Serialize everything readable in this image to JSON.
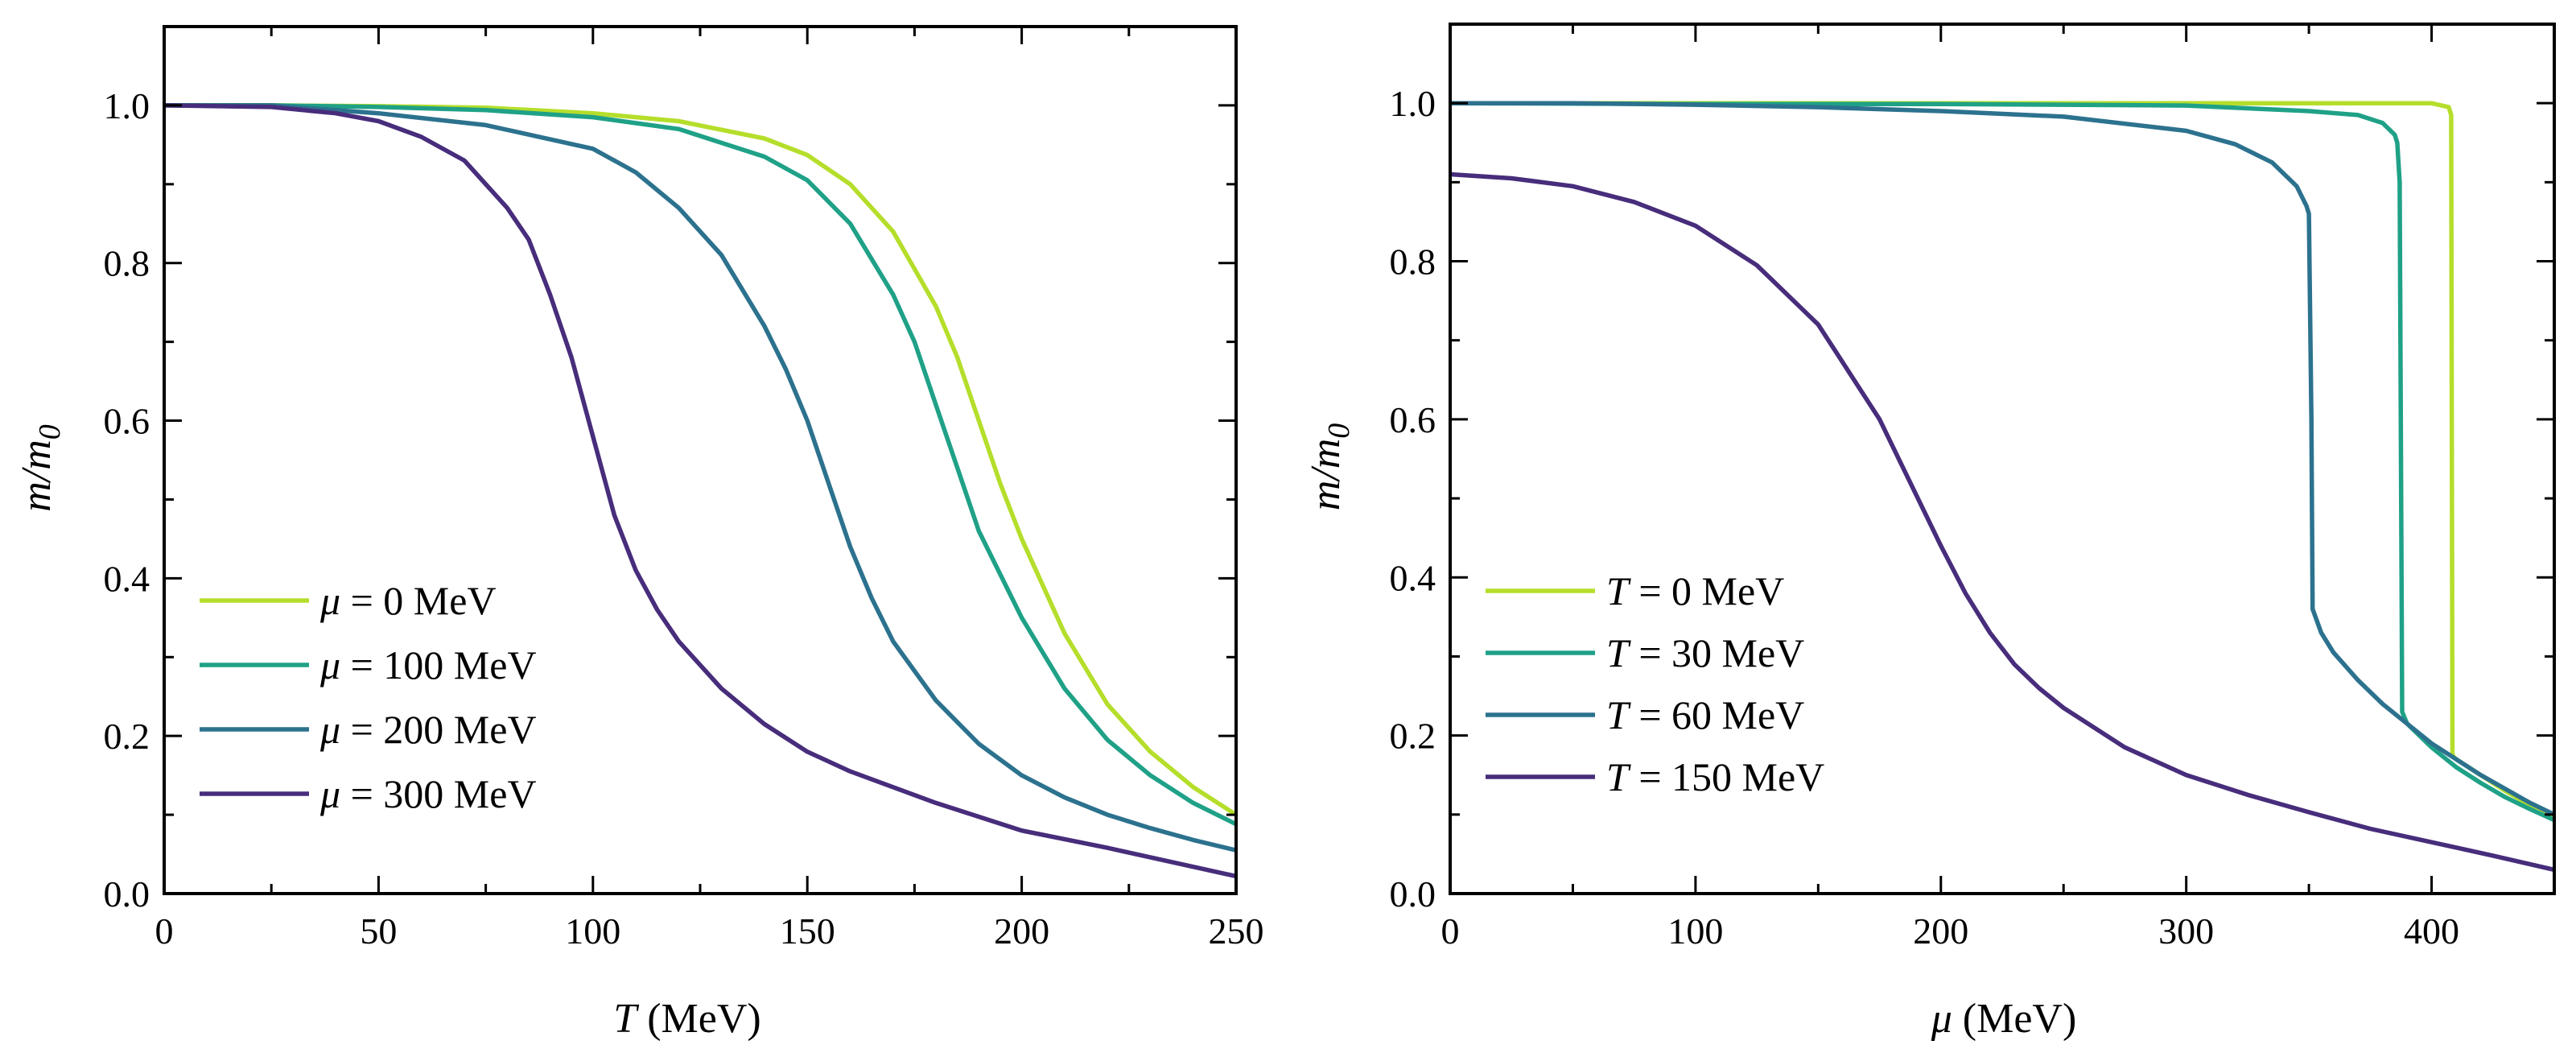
{
  "chart_data": [
    {
      "type": "line",
      "xlabel": "T (MeV)",
      "xlabel_var": "T",
      "xlabel_unit": "(MeV)",
      "ylabel": "m/m0",
      "ylabel_base": "m/m",
      "ylabel_sub": "0",
      "xlim": [
        0,
        250
      ],
      "ylim": [
        0,
        1.1
      ],
      "xticks": [
        0,
        50,
        100,
        150,
        200,
        250
      ],
      "xtick_labels": [
        "0",
        "50",
        "100",
        "150",
        "200",
        "250"
      ],
      "yticks": [
        0.0,
        0.2,
        0.4,
        0.6,
        0.8,
        1.0
      ],
      "ytick_labels": [
        "0.0",
        "0.2",
        "0.4",
        "0.6",
        "0.8",
        "1.0"
      ],
      "legend_placement": "lower-left",
      "series": [
        {
          "name": "μ = 0 MeV",
          "var": "μ",
          "rest": " = 0 MeV",
          "color": "#b5de2b",
          "x": [
            0,
            25,
            50,
            75,
            100,
            120,
            140,
            150,
            160,
            170,
            180,
            185,
            190,
            195,
            200,
            210,
            220,
            230,
            240,
            250
          ],
          "y": [
            1.0,
            1.0,
            0.999,
            0.997,
            0.99,
            0.98,
            0.958,
            0.937,
            0.9,
            0.84,
            0.745,
            0.68,
            0.6,
            0.52,
            0.45,
            0.33,
            0.24,
            0.18,
            0.135,
            0.1
          ]
        },
        {
          "name": "μ = 100 MeV",
          "var": "μ",
          "rest": " = 100 MeV",
          "color": "#1fa187",
          "x": [
            0,
            25,
            50,
            75,
            100,
            120,
            140,
            150,
            160,
            170,
            175,
            180,
            185,
            190,
            200,
            210,
            220,
            230,
            240,
            250
          ],
          "y": [
            1.0,
            1.0,
            0.998,
            0.994,
            0.985,
            0.97,
            0.935,
            0.905,
            0.85,
            0.76,
            0.7,
            0.62,
            0.54,
            0.46,
            0.35,
            0.26,
            0.195,
            0.15,
            0.115,
            0.088
          ]
        },
        {
          "name": "μ = 200 MeV",
          "var": "μ",
          "rest": " = 200 MeV",
          "color": "#2c728e",
          "x": [
            0,
            25,
            50,
            75,
            100,
            110,
            120,
            130,
            140,
            145,
            150,
            155,
            160,
            165,
            170,
            180,
            190,
            200,
            210,
            220,
            230,
            240,
            250
          ],
          "y": [
            1.0,
            1.0,
            0.99,
            0.975,
            0.945,
            0.915,
            0.87,
            0.81,
            0.72,
            0.665,
            0.6,
            0.52,
            0.44,
            0.375,
            0.32,
            0.245,
            0.19,
            0.15,
            0.122,
            0.1,
            0.083,
            0.068,
            0.055
          ]
        },
        {
          "name": "μ = 300 MeV",
          "var": "μ",
          "rest": " = 300 MeV",
          "color": "#472d7b",
          "x": [
            0,
            25,
            40,
            50,
            60,
            70,
            80,
            85,
            90,
            95,
            100,
            105,
            110,
            115,
            120,
            130,
            140,
            150,
            160,
            180,
            200,
            220,
            250
          ],
          "y": [
            1.0,
            0.998,
            0.99,
            0.98,
            0.96,
            0.93,
            0.87,
            0.83,
            0.76,
            0.68,
            0.58,
            0.48,
            0.41,
            0.36,
            0.32,
            0.26,
            0.215,
            0.18,
            0.155,
            0.115,
            0.08,
            0.058,
            0.022
          ]
        }
      ]
    },
    {
      "type": "line",
      "xlabel": "μ (MeV)",
      "xlabel_var": "μ",
      "xlabel_unit": "(MeV)",
      "ylabel": "m/m0",
      "ylabel_base": "m/m",
      "ylabel_sub": "0",
      "xlim": [
        0,
        450
      ],
      "ylim": [
        0,
        1.1
      ],
      "xticks": [
        0,
        100,
        200,
        300,
        400
      ],
      "xtick_labels": [
        "0",
        "100",
        "200",
        "300",
        "400"
      ],
      "yticks": [
        0.0,
        0.2,
        0.4,
        0.6,
        0.8,
        1.0
      ],
      "ytick_labels": [
        "0.0",
        "0.2",
        "0.4",
        "0.6",
        "0.8",
        "1.0"
      ],
      "legend_placement": "lower-left",
      "series": [
        {
          "name": "T = 0 MeV",
          "var": "T",
          "rest": " = 0 MeV",
          "color": "#b5de2b",
          "x": [
            0,
            100,
            200,
            300,
            400,
            407,
            408,
            408.5,
            410,
            420,
            430,
            440,
            450
          ],
          "y": [
            1.0,
            1.0,
            1.0,
            1.0,
            1.0,
            0.995,
            0.985,
            0.175,
            0.17,
            0.15,
            0.13,
            0.112,
            0.095
          ]
        },
        {
          "name": "T = 30 MeV",
          "var": "T",
          "rest": " = 30 MeV",
          "color": "#1fa187",
          "x": [
            0,
            100,
            200,
            300,
            350,
            370,
            380,
            385,
            386,
            387,
            388,
            390,
            400,
            410,
            420,
            430,
            440,
            450
          ],
          "y": [
            1.0,
            0.999,
            0.999,
            0.997,
            0.99,
            0.985,
            0.975,
            0.96,
            0.95,
            0.9,
            0.23,
            0.215,
            0.185,
            0.16,
            0.14,
            0.122,
            0.107,
            0.093
          ]
        },
        {
          "name": "T = 60 MeV",
          "var": "T",
          "rest": " = 60 MeV",
          "color": "#2c728e",
          "x": [
            0,
            50,
            100,
            150,
            200,
            250,
            300,
            320,
            335,
            345,
            349,
            350,
            351,
            351.5,
            355,
            360,
            370,
            380,
            400,
            420,
            440,
            450
          ],
          "y": [
            1.0,
            1.0,
            0.998,
            0.995,
            0.99,
            0.983,
            0.965,
            0.948,
            0.925,
            0.895,
            0.87,
            0.86,
            0.6,
            0.36,
            0.33,
            0.305,
            0.27,
            0.24,
            0.19,
            0.15,
            0.115,
            0.1
          ]
        },
        {
          "name": "T = 150 MeV",
          "var": "T",
          "rest": " = 150 MeV",
          "color": "#472d7b",
          "x": [
            0,
            25,
            50,
            75,
            100,
            125,
            150,
            175,
            200,
            210,
            220,
            230,
            240,
            250,
            275,
            300,
            325,
            350,
            375,
            400,
            425,
            450
          ],
          "y": [
            0.91,
            0.905,
            0.895,
            0.875,
            0.845,
            0.795,
            0.72,
            0.6,
            0.44,
            0.38,
            0.33,
            0.29,
            0.26,
            0.235,
            0.185,
            0.15,
            0.125,
            0.103,
            0.082,
            0.065,
            0.048,
            0.03
          ]
        }
      ]
    }
  ]
}
